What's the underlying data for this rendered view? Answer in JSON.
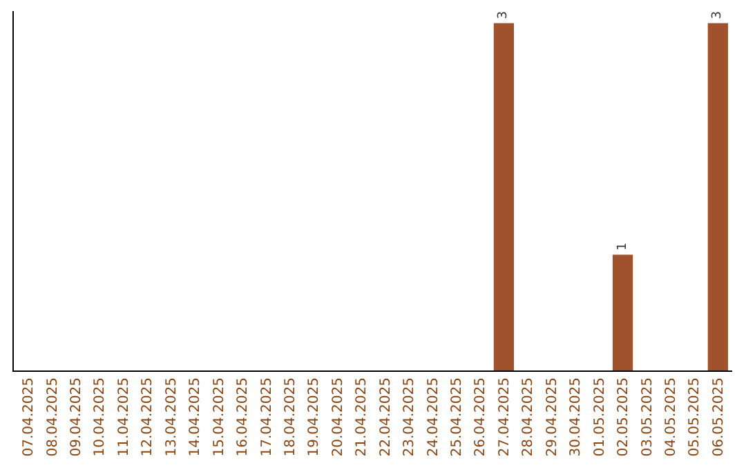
{
  "chart_data": {
    "type": "bar",
    "categories": [
      "07.04.2025",
      "08.04.2025",
      "09.04.2025",
      "10.04.2025",
      "11.04.2025",
      "12.04.2025",
      "13.04.2025",
      "14.04.2025",
      "15.04.2025",
      "16.04.2025",
      "17.04.2025",
      "18.04.2025",
      "19.04.2025",
      "20.04.2025",
      "21.04.2025",
      "22.04.2025",
      "23.04.2025",
      "24.04.2025",
      "25.04.2025",
      "26.04.2025",
      "27.04.2025",
      "28.04.2025",
      "29.04.2025",
      "30.04.2025",
      "01.05.2025",
      "02.05.2025",
      "03.05.2025",
      "04.05.2025",
      "05.05.2025",
      "06.05.2025"
    ],
    "values": [
      null,
      null,
      null,
      null,
      null,
      null,
      null,
      null,
      null,
      null,
      null,
      null,
      null,
      null,
      null,
      null,
      null,
      null,
      null,
      null,
      3,
      null,
      null,
      null,
      null,
      1,
      null,
      null,
      null,
      3
    ],
    "color": "#a0522d",
    "data_labels": true,
    "tick_labels": "x"
  }
}
